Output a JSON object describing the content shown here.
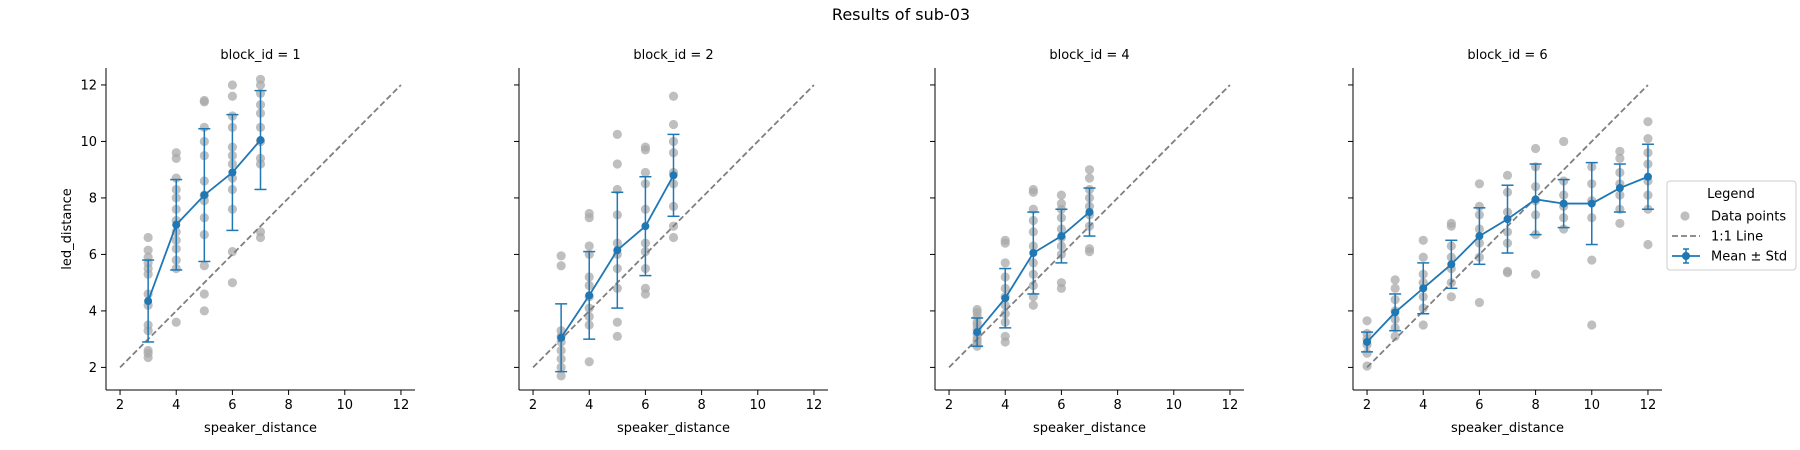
{
  "figure": {
    "title": "Results of sub-03",
    "colors": {
      "mean": "#1f77b4",
      "points": "#a9a9a9",
      "identity": "#7f7f7f",
      "axes": "#000000"
    }
  },
  "legend": {
    "title": "Legend",
    "placement": "right",
    "entries": [
      {
        "label": "Data points",
        "kind": "points"
      },
      {
        "label": "1:1 Line",
        "kind": "dashed-line"
      },
      {
        "label": "Mean ± Std",
        "kind": "errorbar"
      }
    ]
  },
  "chart_data": [
    {
      "type": "scatter",
      "title": "block_id = 1",
      "xlabel": "speaker_distance",
      "ylabel": "led_distance",
      "xlim": [
        1.5,
        12.5
      ],
      "ylim": [
        1.2,
        12.6
      ],
      "xticks": [
        2,
        4,
        6,
        8,
        10,
        12
      ],
      "yticks": [
        2,
        4,
        6,
        8,
        10,
        12
      ],
      "identity_line": [
        2,
        12
      ],
      "mean": [
        {
          "x": 3,
          "y": 4.35,
          "std": 1.45
        },
        {
          "x": 4,
          "y": 7.05,
          "std": 1.6
        },
        {
          "x": 5,
          "y": 8.1,
          "std": 2.35
        },
        {
          "x": 6,
          "y": 8.9,
          "std": 2.05
        },
        {
          "x": 7,
          "y": 10.05,
          "std": 1.75
        }
      ],
      "points": [
        [
          3,
          2.35
        ],
        [
          3,
          2.5
        ],
        [
          3,
          2.6
        ],
        [
          3,
          3.3
        ],
        [
          3,
          3.5
        ],
        [
          3,
          4.2
        ],
        [
          3,
          4.6
        ],
        [
          3,
          5.3
        ],
        [
          3,
          5.5
        ],
        [
          3,
          5.7
        ],
        [
          3,
          5.9
        ],
        [
          3,
          6.15
        ],
        [
          3,
          6.6
        ],
        [
          4,
          3.6
        ],
        [
          4,
          5.5
        ],
        [
          4,
          5.8
        ],
        [
          4,
          6.2
        ],
        [
          4,
          6.5
        ],
        [
          4,
          6.8
        ],
        [
          4,
          7.2
        ],
        [
          4,
          7.6
        ],
        [
          4,
          8.0
        ],
        [
          4,
          8.3
        ],
        [
          4,
          8.7
        ],
        [
          4,
          9.4
        ],
        [
          4,
          9.6
        ],
        [
          5,
          4.0
        ],
        [
          5,
          4.6
        ],
        [
          5,
          5.6
        ],
        [
          5,
          6.7
        ],
        [
          5,
          7.3
        ],
        [
          5,
          7.9
        ],
        [
          5,
          8.1
        ],
        [
          5,
          8.6
        ],
        [
          5,
          9.5
        ],
        [
          5,
          10.0
        ],
        [
          5,
          10.5
        ],
        [
          5,
          11.4
        ],
        [
          5,
          11.45
        ],
        [
          6,
          5.0
        ],
        [
          6,
          6.1
        ],
        [
          6,
          7.6
        ],
        [
          6,
          8.3
        ],
        [
          6,
          8.7
        ],
        [
          6,
          9.2
        ],
        [
          6,
          9.5
        ],
        [
          6,
          9.8
        ],
        [
          6,
          10.5
        ],
        [
          6,
          10.9
        ],
        [
          6,
          11.6
        ],
        [
          6,
          12.0
        ],
        [
          7,
          6.6
        ],
        [
          7,
          6.8
        ],
        [
          7,
          9.2
        ],
        [
          7,
          9.4
        ],
        [
          7,
          10.0
        ],
        [
          7,
          10.5
        ],
        [
          7,
          11.0
        ],
        [
          7,
          11.3
        ],
        [
          7,
          11.7
        ],
        [
          7,
          12.0
        ],
        [
          7,
          12.2
        ]
      ]
    },
    {
      "type": "scatter",
      "title": "block_id = 2",
      "xlabel": "speaker_distance",
      "ylabel": "",
      "xlim": [
        1.5,
        12.5
      ],
      "ylim": [
        1.2,
        12.6
      ],
      "xticks": [
        2,
        4,
        6,
        8,
        10,
        12
      ],
      "yticks": [
        2,
        4,
        6,
        8,
        10,
        12
      ],
      "identity_line": [
        2,
        12
      ],
      "mean": [
        {
          "x": 3,
          "y": 3.05,
          "std": 1.2
        },
        {
          "x": 4,
          "y": 4.55,
          "std": 1.55
        },
        {
          "x": 5,
          "y": 6.15,
          "std": 2.05
        },
        {
          "x": 6,
          "y": 7.0,
          "std": 1.75
        },
        {
          "x": 7,
          "y": 8.8,
          "std": 1.45
        }
      ],
      "points": [
        [
          3,
          1.7
        ],
        [
          3,
          2.0
        ],
        [
          3,
          2.3
        ],
        [
          3,
          2.6
        ],
        [
          3,
          2.9
        ],
        [
          3,
          3.1
        ],
        [
          3,
          3.3
        ],
        [
          3,
          5.6
        ],
        [
          3,
          5.95
        ],
        [
          4,
          2.2
        ],
        [
          4,
          3.5
        ],
        [
          4,
          3.8
        ],
        [
          4,
          4.1
        ],
        [
          4,
          4.5
        ],
        [
          4,
          4.9
        ],
        [
          4,
          5.2
        ],
        [
          4,
          6.0
        ],
        [
          4,
          6.3
        ],
        [
          4,
          7.3
        ],
        [
          4,
          7.45
        ],
        [
          5,
          3.1
        ],
        [
          5,
          3.6
        ],
        [
          5,
          4.8
        ],
        [
          5,
          5.5
        ],
        [
          5,
          6.0
        ],
        [
          5,
          6.4
        ],
        [
          5,
          7.4
        ],
        [
          5,
          8.3
        ],
        [
          5,
          9.2
        ],
        [
          5,
          10.25
        ],
        [
          6,
          4.6
        ],
        [
          6,
          4.8
        ],
        [
          6,
          5.5
        ],
        [
          6,
          6.1
        ],
        [
          6,
          6.4
        ],
        [
          6,
          7.6
        ],
        [
          6,
          8.5
        ],
        [
          6,
          8.9
        ],
        [
          6,
          9.7
        ],
        [
          6,
          9.8
        ],
        [
          7,
          6.6
        ],
        [
          7,
          7.0
        ],
        [
          7,
          7.7
        ],
        [
          7,
          8.5
        ],
        [
          7,
          8.9
        ],
        [
          7,
          9.6
        ],
        [
          7,
          10.0
        ],
        [
          7,
          10.6
        ],
        [
          7,
          11.6
        ]
      ]
    },
    {
      "type": "scatter",
      "title": "block_id = 4",
      "xlabel": "speaker_distance",
      "ylabel": "",
      "xlim": [
        1.5,
        12.5
      ],
      "ylim": [
        1.2,
        12.6
      ],
      "xticks": [
        2,
        4,
        6,
        8,
        10,
        12
      ],
      "yticks": [
        2,
        4,
        6,
        8,
        10,
        12
      ],
      "identity_line": [
        2,
        12
      ],
      "mean": [
        {
          "x": 3,
          "y": 3.25,
          "std": 0.5
        },
        {
          "x": 4,
          "y": 4.45,
          "std": 1.05
        },
        {
          "x": 5,
          "y": 6.05,
          "std": 1.45
        },
        {
          "x": 6,
          "y": 6.65,
          "std": 0.95
        },
        {
          "x": 7,
          "y": 7.5,
          "std": 0.85
        }
      ],
      "points": [
        [
          3,
          2.75
        ],
        [
          3,
          2.85
        ],
        [
          3,
          2.95
        ],
        [
          3,
          3.05
        ],
        [
          3,
          3.2
        ],
        [
          3,
          3.35
        ],
        [
          3,
          3.5
        ],
        [
          3,
          3.6
        ],
        [
          3,
          3.8
        ],
        [
          3,
          3.95
        ],
        [
          3,
          4.05
        ],
        [
          4,
          2.9
        ],
        [
          4,
          3.1
        ],
        [
          4,
          3.6
        ],
        [
          4,
          3.9
        ],
        [
          4,
          4.2
        ],
        [
          4,
          4.5
        ],
        [
          4,
          4.8
        ],
        [
          4,
          5.2
        ],
        [
          4,
          5.7
        ],
        [
          4,
          6.4
        ],
        [
          4,
          6.5
        ],
        [
          5,
          4.2
        ],
        [
          5,
          4.5
        ],
        [
          5,
          4.9
        ],
        [
          5,
          5.3
        ],
        [
          5,
          5.7
        ],
        [
          5,
          6.3
        ],
        [
          5,
          6.8
        ],
        [
          5,
          7.2
        ],
        [
          5,
          7.6
        ],
        [
          5,
          8.2
        ],
        [
          5,
          8.3
        ],
        [
          6,
          4.8
        ],
        [
          6,
          5.0
        ],
        [
          6,
          6.0
        ],
        [
          6,
          6.3
        ],
        [
          6,
          6.6
        ],
        [
          6,
          6.9
        ],
        [
          6,
          7.3
        ],
        [
          6,
          7.6
        ],
        [
          6,
          7.8
        ],
        [
          6,
          8.1
        ],
        [
          7,
          6.1
        ],
        [
          7,
          6.2
        ],
        [
          7,
          7.0
        ],
        [
          7,
          7.4
        ],
        [
          7,
          7.7
        ],
        [
          7,
          8.0
        ],
        [
          7,
          8.3
        ],
        [
          7,
          8.7
        ],
        [
          7,
          9.0
        ]
      ]
    },
    {
      "type": "scatter",
      "title": "block_id = 6",
      "xlabel": "speaker_distance",
      "ylabel": "",
      "xlim": [
        1.5,
        12.5
      ],
      "ylim": [
        1.2,
        12.6
      ],
      "xticks": [
        2,
        4,
        6,
        8,
        10,
        12
      ],
      "yticks": [
        2,
        4,
        6,
        8,
        10,
        12
      ],
      "identity_line": [
        2,
        12
      ],
      "mean": [
        {
          "x": 2,
          "y": 2.9,
          "std": 0.35
        },
        {
          "x": 3,
          "y": 3.95,
          "std": 0.65
        },
        {
          "x": 4,
          "y": 4.8,
          "std": 0.9
        },
        {
          "x": 5,
          "y": 5.65,
          "std": 0.85
        },
        {
          "x": 6,
          "y": 6.65,
          "std": 1.0
        },
        {
          "x": 7,
          "y": 7.25,
          "std": 1.2
        },
        {
          "x": 8,
          "y": 7.95,
          "std": 1.25
        },
        {
          "x": 9,
          "y": 7.8,
          "std": 0.85
        },
        {
          "x": 10,
          "y": 7.8,
          "std": 1.45
        },
        {
          "x": 11,
          "y": 8.35,
          "std": 0.85
        },
        {
          "x": 12,
          "y": 8.75,
          "std": 1.15
        }
      ],
      "points": [
        [
          2,
          2.05
        ],
        [
          2,
          2.5
        ],
        [
          2,
          2.8
        ],
        [
          2,
          3.0
        ],
        [
          2,
          3.2
        ],
        [
          2,
          3.65
        ],
        [
          3,
          3.1
        ],
        [
          3,
          3.4
        ],
        [
          3,
          3.7
        ],
        [
          3,
          4.0
        ],
        [
          3,
          4.4
        ],
        [
          3,
          4.8
        ],
        [
          3,
          5.1
        ],
        [
          4,
          3.5
        ],
        [
          4,
          4.1
        ],
        [
          4,
          4.5
        ],
        [
          4,
          5.0
        ],
        [
          4,
          5.3
        ],
        [
          4,
          5.9
        ],
        [
          4,
          6.5
        ],
        [
          5,
          4.5
        ],
        [
          5,
          5.0
        ],
        [
          5,
          5.5
        ],
        [
          5,
          5.9
        ],
        [
          5,
          6.3
        ],
        [
          5,
          7.0
        ],
        [
          5,
          7.1
        ],
        [
          6,
          4.3
        ],
        [
          6,
          5.9
        ],
        [
          6,
          6.4
        ],
        [
          6,
          6.9
        ],
        [
          6,
          7.4
        ],
        [
          6,
          7.7
        ],
        [
          6,
          8.5
        ],
        [
          7,
          5.35
        ],
        [
          7,
          5.4
        ],
        [
          7,
          6.4
        ],
        [
          7,
          6.8
        ],
        [
          7,
          7.5
        ],
        [
          7,
          8.2
        ],
        [
          7,
          8.8
        ],
        [
          8,
          5.3
        ],
        [
          8,
          6.7
        ],
        [
          8,
          7.4
        ],
        [
          8,
          7.9
        ],
        [
          8,
          8.4
        ],
        [
          8,
          9.1
        ],
        [
          8,
          9.75
        ],
        [
          9,
          6.9
        ],
        [
          9,
          7.3
        ],
        [
          9,
          7.7
        ],
        [
          9,
          8.1
        ],
        [
          9,
          8.6
        ],
        [
          9,
          10.0
        ],
        [
          10,
          3.5
        ],
        [
          10,
          5.8
        ],
        [
          10,
          7.3
        ],
        [
          10,
          7.9
        ],
        [
          10,
          8.5
        ],
        [
          10,
          9.1
        ],
        [
          11,
          7.1
        ],
        [
          11,
          7.6
        ],
        [
          11,
          8.1
        ],
        [
          11,
          8.5
        ],
        [
          11,
          8.9
        ],
        [
          11,
          9.4
        ],
        [
          11,
          9.65
        ],
        [
          12,
          6.35
        ],
        [
          12,
          7.6
        ],
        [
          12,
          8.1
        ],
        [
          12,
          8.6
        ],
        [
          12,
          9.2
        ],
        [
          12,
          9.6
        ],
        [
          12,
          10.1
        ],
        [
          12,
          10.7
        ]
      ]
    }
  ]
}
